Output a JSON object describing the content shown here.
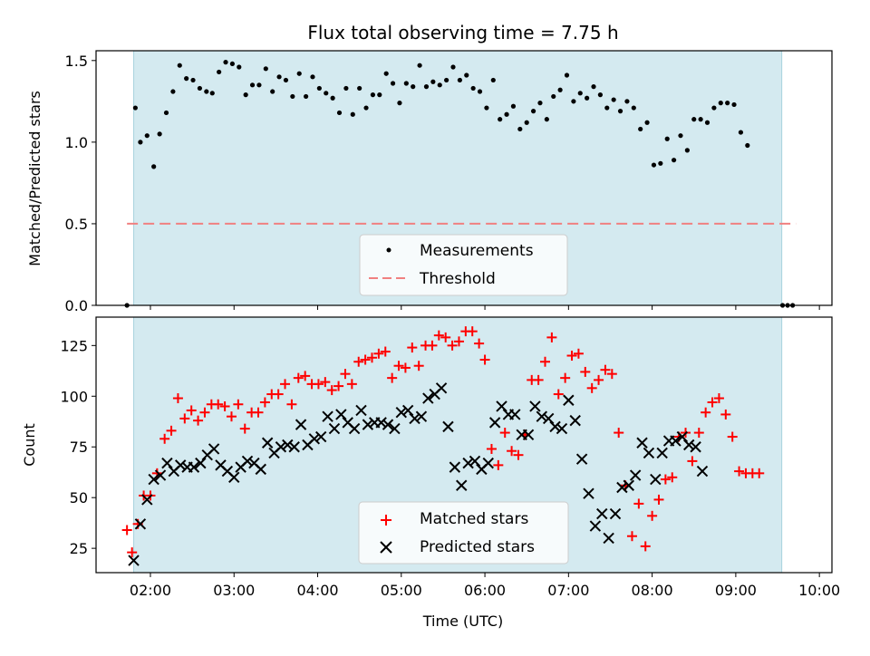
{
  "chart_data": {
    "type": "scatter",
    "title": "Flux total observing time = 7.75 h",
    "xlabel": "Time (UTC)",
    "shaded_region_x": [
      1.8,
      9.55
    ],
    "colors": {
      "shade": "#d4eaf0",
      "measurement": "#000000",
      "threshold": "#f08080",
      "matched": "#ff0000",
      "predicted": "#000000"
    },
    "x_ticks": [
      {
        "x": 2,
        "label": "02:00"
      },
      {
        "x": 3,
        "label": "03:00"
      },
      {
        "x": 4,
        "label": "04:00"
      },
      {
        "x": 5,
        "label": "05:00"
      },
      {
        "x": 6,
        "label": "06:00"
      },
      {
        "x": 7,
        "label": "07:00"
      },
      {
        "x": 8,
        "label": "08:00"
      },
      {
        "x": 9,
        "label": "09:00"
      },
      {
        "x": 10,
        "label": "10:00"
      }
    ],
    "xlim": [
      1.35,
      10.15
    ],
    "top": {
      "ylabel": "Matched/Predicted stars",
      "ylim": [
        0,
        1.56
      ],
      "y_ticks": [
        {
          "y": 0,
          "label": "0.0"
        },
        {
          "y": 0.5,
          "label": "0.5"
        },
        {
          "y": 1.0,
          "label": "1.0"
        },
        {
          "y": 1.5,
          "label": "1.5"
        }
      ],
      "legend": {
        "placement": "lower-center",
        "measurements": "Measurements",
        "threshold": "Threshold"
      },
      "threshold": {
        "value": 0.5,
        "x": [
          1.72,
          9.72
        ]
      },
      "measurements": [
        [
          1.72,
          0.0
        ],
        [
          1.82,
          1.21
        ],
        [
          1.88,
          1.0
        ],
        [
          1.96,
          1.04
        ],
        [
          2.04,
          0.85
        ],
        [
          2.11,
          1.05
        ],
        [
          2.19,
          1.18
        ],
        [
          2.27,
          1.31
        ],
        [
          2.35,
          1.47
        ],
        [
          2.43,
          1.39
        ],
        [
          2.51,
          1.38
        ],
        [
          2.59,
          1.33
        ],
        [
          2.67,
          1.31
        ],
        [
          2.74,
          1.3
        ],
        [
          2.82,
          1.43
        ],
        [
          2.9,
          1.49
        ],
        [
          2.98,
          1.48
        ],
        [
          3.06,
          1.46
        ],
        [
          3.14,
          1.29
        ],
        [
          3.22,
          1.35
        ],
        [
          3.3,
          1.35
        ],
        [
          3.38,
          1.45
        ],
        [
          3.46,
          1.31
        ],
        [
          3.54,
          1.4
        ],
        [
          3.62,
          1.38
        ],
        [
          3.7,
          1.28
        ],
        [
          3.78,
          1.42
        ],
        [
          3.86,
          1.28
        ],
        [
          3.94,
          1.4
        ],
        [
          4.02,
          1.33
        ],
        [
          4.1,
          1.3
        ],
        [
          4.18,
          1.27
        ],
        [
          4.26,
          1.18
        ],
        [
          4.34,
          1.33
        ],
        [
          4.42,
          1.17
        ],
        [
          4.5,
          1.33
        ],
        [
          4.58,
          1.21
        ],
        [
          4.66,
          1.29
        ],
        [
          4.74,
          1.29
        ],
        [
          4.82,
          1.42
        ],
        [
          4.9,
          1.36
        ],
        [
          4.98,
          1.24
        ],
        [
          5.06,
          1.36
        ],
        [
          5.14,
          1.34
        ],
        [
          5.22,
          1.47
        ],
        [
          5.3,
          1.34
        ],
        [
          5.38,
          1.37
        ],
        [
          5.46,
          1.35
        ],
        [
          5.54,
          1.38
        ],
        [
          5.62,
          1.46
        ],
        [
          5.7,
          1.38
        ],
        [
          5.78,
          1.41
        ],
        [
          5.86,
          1.33
        ],
        [
          5.94,
          1.31
        ],
        [
          6.02,
          1.21
        ],
        [
          6.1,
          1.38
        ],
        [
          6.18,
          1.14
        ],
        [
          6.26,
          1.17
        ],
        [
          6.34,
          1.22
        ],
        [
          6.42,
          1.08
        ],
        [
          6.5,
          1.12
        ],
        [
          6.58,
          1.19
        ],
        [
          6.66,
          1.24
        ],
        [
          6.74,
          1.14
        ],
        [
          6.82,
          1.28
        ],
        [
          6.9,
          1.32
        ],
        [
          6.98,
          1.41
        ],
        [
          7.06,
          1.25
        ],
        [
          7.14,
          1.3
        ],
        [
          7.22,
          1.27
        ],
        [
          7.3,
          1.34
        ],
        [
          7.38,
          1.29
        ],
        [
          7.46,
          1.21
        ],
        [
          7.54,
          1.26
        ],
        [
          7.62,
          1.19
        ],
        [
          7.7,
          1.25
        ],
        [
          7.78,
          1.21
        ],
        [
          7.86,
          1.08
        ],
        [
          7.94,
          1.12
        ],
        [
          8.02,
          0.86
        ],
        [
          8.1,
          0.87
        ],
        [
          8.18,
          1.02
        ],
        [
          8.26,
          0.89
        ],
        [
          8.34,
          1.04
        ],
        [
          8.42,
          0.95
        ],
        [
          8.5,
          1.14
        ],
        [
          8.58,
          1.14
        ],
        [
          8.66,
          1.12
        ],
        [
          8.74,
          1.21
        ],
        [
          8.82,
          1.24
        ],
        [
          8.9,
          1.24
        ],
        [
          8.98,
          1.23
        ],
        [
          9.06,
          1.06
        ],
        [
          9.14,
          0.98
        ],
        [
          9.56,
          0.0
        ],
        [
          9.62,
          0.0
        ],
        [
          9.68,
          0.0
        ]
      ]
    },
    "bottom": {
      "ylabel": "Count",
      "ylim": [
        13,
        139
      ],
      "y_ticks": [
        {
          "y": 25,
          "label": "25"
        },
        {
          "y": 50,
          "label": "50"
        },
        {
          "y": 75,
          "label": "75"
        },
        {
          "y": 100,
          "label": "100"
        },
        {
          "y": 125,
          "label": "125"
        }
      ],
      "legend": {
        "placement": "lower-center",
        "matched": "Matched stars",
        "predicted": "Predicted stars"
      },
      "series": [
        {
          "name": "Matched stars",
          "marker": "plus",
          "points": [
            [
              1.72,
              34
            ],
            [
              1.78,
              23
            ],
            [
              1.85,
              37
            ],
            [
              1.92,
              51
            ],
            [
              2.0,
              51
            ],
            [
              2.08,
              62
            ],
            [
              2.17,
              79
            ],
            [
              2.25,
              83
            ],
            [
              2.33,
              99
            ],
            [
              2.41,
              89
            ],
            [
              2.49,
              93
            ],
            [
              2.57,
              88
            ],
            [
              2.65,
              92
            ],
            [
              2.73,
              96
            ],
            [
              2.81,
              96
            ],
            [
              2.89,
              95
            ],
            [
              2.97,
              90
            ],
            [
              3.05,
              96
            ],
            [
              3.13,
              84
            ],
            [
              3.21,
              92
            ],
            [
              3.29,
              92
            ],
            [
              3.37,
              97
            ],
            [
              3.45,
              101
            ],
            [
              3.53,
              101
            ],
            [
              3.61,
              106
            ],
            [
              3.69,
              96
            ],
            [
              3.77,
              109
            ],
            [
              3.85,
              110
            ],
            [
              3.93,
              106
            ],
            [
              4.01,
              106
            ],
            [
              4.09,
              107
            ],
            [
              4.17,
              103
            ],
            [
              4.25,
              105
            ],
            [
              4.33,
              111
            ],
            [
              4.41,
              106
            ],
            [
              4.49,
              117
            ],
            [
              4.57,
              118
            ],
            [
              4.65,
              119
            ],
            [
              4.73,
              121
            ],
            [
              4.81,
              122
            ],
            [
              4.89,
              109
            ],
            [
              4.97,
              115
            ],
            [
              5.05,
              114
            ],
            [
              5.13,
              124
            ],
            [
              5.21,
              115
            ],
            [
              5.29,
              125
            ],
            [
              5.37,
              125
            ],
            [
              5.45,
              130
            ],
            [
              5.53,
              129
            ],
            [
              5.61,
              125
            ],
            [
              5.69,
              127
            ],
            [
              5.77,
              132
            ],
            [
              5.85,
              132
            ],
            [
              5.93,
              126
            ],
            [
              6.0,
              118
            ],
            [
              6.08,
              74
            ],
            [
              6.16,
              66
            ],
            [
              6.24,
              82
            ],
            [
              6.32,
              73
            ],
            [
              6.4,
              71
            ],
            [
              6.48,
              81
            ],
            [
              6.56,
              108
            ],
            [
              6.64,
              108
            ],
            [
              6.72,
              117
            ],
            [
              6.8,
              129
            ],
            [
              6.88,
              101
            ],
            [
              6.96,
              109
            ],
            [
              7.04,
              120
            ],
            [
              7.12,
              121
            ],
            [
              7.2,
              112
            ],
            [
              7.28,
              104
            ],
            [
              7.36,
              108
            ],
            [
              7.44,
              113
            ],
            [
              7.52,
              111
            ],
            [
              7.6,
              82
            ],
            [
              7.68,
              56
            ],
            [
              7.76,
              31
            ],
            [
              7.84,
              47
            ],
            [
              7.92,
              26
            ],
            [
              8.0,
              41
            ],
            [
              8.08,
              49
            ],
            [
              8.16,
              59
            ],
            [
              8.24,
              60
            ],
            [
              8.32,
              80
            ],
            [
              8.4,
              82
            ],
            [
              8.48,
              68
            ],
            [
              8.56,
              82
            ],
            [
              8.64,
              92
            ],
            [
              8.72,
              97
            ],
            [
              8.8,
              99
            ],
            [
              8.88,
              91
            ],
            [
              8.96,
              80
            ],
            [
              9.04,
              63
            ],
            [
              9.12,
              62
            ],
            [
              9.2,
              62
            ],
            [
              9.28,
              62
            ]
          ]
        },
        {
          "name": "Predicted stars",
          "marker": "x",
          "points": [
            [
              1.8,
              19
            ],
            [
              1.88,
              37
            ],
            [
              1.96,
              49
            ],
            [
              2.04,
              59
            ],
            [
              2.12,
              61
            ],
            [
              2.2,
              67
            ],
            [
              2.28,
              63
            ],
            [
              2.36,
              66
            ],
            [
              2.44,
              65
            ],
            [
              2.52,
              65
            ],
            [
              2.6,
              67
            ],
            [
              2.68,
              71
            ],
            [
              2.76,
              74
            ],
            [
              2.84,
              66
            ],
            [
              2.92,
              63
            ],
            [
              3.0,
              60
            ],
            [
              3.08,
              65
            ],
            [
              3.16,
              68
            ],
            [
              3.24,
              67
            ],
            [
              3.32,
              64
            ],
            [
              3.4,
              77
            ],
            [
              3.48,
              72
            ],
            [
              3.56,
              75
            ],
            [
              3.64,
              76
            ],
            [
              3.72,
              75
            ],
            [
              3.8,
              86
            ],
            [
              3.88,
              76
            ],
            [
              3.96,
              79
            ],
            [
              4.04,
              80
            ],
            [
              4.12,
              90
            ],
            [
              4.2,
              84
            ],
            [
              4.28,
              91
            ],
            [
              4.36,
              87
            ],
            [
              4.44,
              84
            ],
            [
              4.52,
              93
            ],
            [
              4.6,
              86
            ],
            [
              4.68,
              87
            ],
            [
              4.76,
              87
            ],
            [
              4.84,
              86
            ],
            [
              4.92,
              84
            ],
            [
              5.0,
              92
            ],
            [
              5.08,
              93
            ],
            [
              5.16,
              89
            ],
            [
              5.24,
              90
            ],
            [
              5.32,
              99
            ],
            [
              5.4,
              101
            ],
            [
              5.48,
              104
            ],
            [
              5.56,
              85
            ],
            [
              5.64,
              65
            ],
            [
              5.72,
              56
            ],
            [
              5.8,
              67
            ],
            [
              5.88,
              68
            ],
            [
              5.96,
              64
            ],
            [
              6.04,
              67
            ],
            [
              6.12,
              87
            ],
            [
              6.2,
              95
            ],
            [
              6.28,
              91
            ],
            [
              6.36,
              91
            ],
            [
              6.44,
              81
            ],
            [
              6.52,
              81
            ],
            [
              6.6,
              95
            ],
            [
              6.68,
              90
            ],
            [
              6.76,
              89
            ],
            [
              6.84,
              85
            ],
            [
              6.92,
              84
            ],
            [
              7.0,
              98
            ],
            [
              7.08,
              88
            ],
            [
              7.16,
              69
            ],
            [
              7.24,
              52
            ],
            [
              7.32,
              36
            ],
            [
              7.4,
              42
            ],
            [
              7.48,
              30
            ],
            [
              7.56,
              42
            ],
            [
              7.64,
              55
            ],
            [
              7.72,
              56
            ],
            [
              7.8,
              61
            ],
            [
              7.88,
              77
            ],
            [
              7.96,
              72
            ],
            [
              8.04,
              59
            ],
            [
              8.12,
              72
            ],
            [
              8.2,
              78
            ],
            [
              8.28,
              78
            ],
            [
              8.36,
              80
            ],
            [
              8.44,
              76
            ],
            [
              8.52,
              75
            ],
            [
              8.6,
              63
            ]
          ]
        }
      ]
    }
  }
}
